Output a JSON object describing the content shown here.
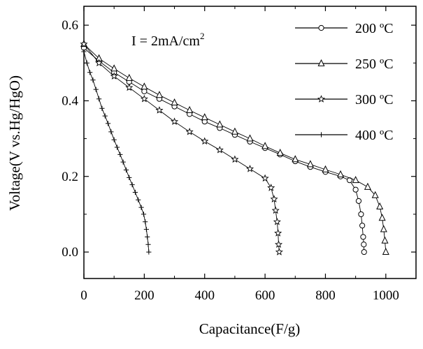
{
  "chart_data": {
    "type": "scatter",
    "title": "",
    "annotation": {
      "text": "I = 2mA/cm",
      "superscript": "2"
    },
    "xlabel": "Capacitance(F/g)",
    "ylabel": "Voltage(V vs.Hg/HgO)",
    "xlim": [
      0,
      1100
    ],
    "ylim": [
      -0.07,
      0.65
    ],
    "xticks": [
      "0",
      "200",
      "400",
      "600",
      "800",
      "1000"
    ],
    "yticks": [
      "0.0",
      "0.2",
      "0.4",
      "0.6"
    ],
    "grid": false,
    "legend_position": "top-right",
    "series": [
      {
        "name": "200 ºC",
        "marker": "circle",
        "points": [
          [
            0,
            0.54
          ],
          [
            50,
            0.505
          ],
          [
            100,
            0.475
          ],
          [
            150,
            0.45
          ],
          [
            200,
            0.425
          ],
          [
            250,
            0.405
          ],
          [
            300,
            0.385
          ],
          [
            350,
            0.365
          ],
          [
            400,
            0.345
          ],
          [
            450,
            0.328
          ],
          [
            500,
            0.31
          ],
          [
            550,
            0.292
          ],
          [
            600,
            0.275
          ],
          [
            650,
            0.258
          ],
          [
            700,
            0.24
          ],
          [
            750,
            0.225
          ],
          [
            800,
            0.212
          ],
          [
            850,
            0.2
          ],
          [
            880,
            0.19
          ],
          [
            900,
            0.165
          ],
          [
            910,
            0.135
          ],
          [
            918,
            0.1
          ],
          [
            922,
            0.07
          ],
          [
            925,
            0.04
          ],
          [
            927,
            0.02
          ],
          [
            928,
            0.0
          ]
        ]
      },
      {
        "name": "250 ºC",
        "marker": "triangle",
        "points": [
          [
            0,
            0.55
          ],
          [
            50,
            0.512
          ],
          [
            100,
            0.485
          ],
          [
            150,
            0.46
          ],
          [
            200,
            0.437
          ],
          [
            250,
            0.415
          ],
          [
            300,
            0.395
          ],
          [
            350,
            0.375
          ],
          [
            400,
            0.356
          ],
          [
            450,
            0.337
          ],
          [
            500,
            0.318
          ],
          [
            550,
            0.3
          ],
          [
            600,
            0.28
          ],
          [
            650,
            0.262
          ],
          [
            700,
            0.245
          ],
          [
            750,
            0.232
          ],
          [
            800,
            0.218
          ],
          [
            850,
            0.205
          ],
          [
            900,
            0.19
          ],
          [
            940,
            0.172
          ],
          [
            965,
            0.15
          ],
          [
            980,
            0.12
          ],
          [
            988,
            0.09
          ],
          [
            993,
            0.06
          ],
          [
            997,
            0.03
          ],
          [
            1000,
            0.0
          ]
        ]
      },
      {
        "name": "300 ºC",
        "marker": "star",
        "points": [
          [
            0,
            0.55
          ],
          [
            50,
            0.5
          ],
          [
            100,
            0.465
          ],
          [
            150,
            0.435
          ],
          [
            200,
            0.405
          ],
          [
            250,
            0.375
          ],
          [
            300,
            0.345
          ],
          [
            350,
            0.318
          ],
          [
            400,
            0.293
          ],
          [
            450,
            0.27
          ],
          [
            500,
            0.245
          ],
          [
            550,
            0.22
          ],
          [
            600,
            0.195
          ],
          [
            620,
            0.17
          ],
          [
            630,
            0.14
          ],
          [
            635,
            0.11
          ],
          [
            640,
            0.08
          ],
          [
            643,
            0.05
          ],
          [
            645,
            0.02
          ],
          [
            647,
            0.0
          ]
        ]
      },
      {
        "name": "400 ºC",
        "marker": "plus",
        "points": [
          [
            0,
            0.53
          ],
          [
            10,
            0.5
          ],
          [
            20,
            0.475
          ],
          [
            30,
            0.455
          ],
          [
            40,
            0.43
          ],
          [
            50,
            0.405
          ],
          [
            60,
            0.38
          ],
          [
            70,
            0.36
          ],
          [
            80,
            0.34
          ],
          [
            90,
            0.318
          ],
          [
            100,
            0.297
          ],
          [
            110,
            0.277
          ],
          [
            120,
            0.258
          ],
          [
            130,
            0.238
          ],
          [
            140,
            0.217
          ],
          [
            150,
            0.197
          ],
          [
            160,
            0.178
          ],
          [
            170,
            0.158
          ],
          [
            180,
            0.138
          ],
          [
            190,
            0.118
          ],
          [
            198,
            0.1
          ],
          [
            203,
            0.08
          ],
          [
            207,
            0.06
          ],
          [
            210,
            0.04
          ],
          [
            213,
            0.02
          ],
          [
            215,
            0.0
          ]
        ]
      }
    ]
  }
}
